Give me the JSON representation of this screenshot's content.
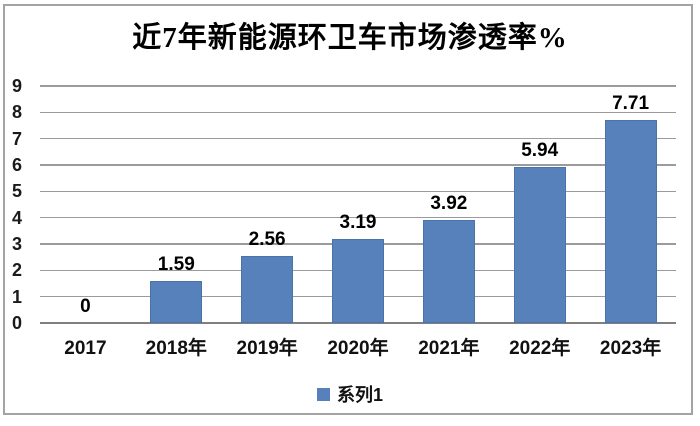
{
  "chart_data": {
    "type": "bar",
    "title": "近7年新能源环卫车市场渗透率%",
    "categories": [
      "2017",
      "2018年",
      "2019年",
      "2020年",
      "2021年",
      "2022年",
      "2023年"
    ],
    "values": [
      0,
      1.59,
      2.56,
      3.19,
      3.92,
      5.94,
      7.71
    ],
    "value_labels": [
      "0",
      "1.59",
      "2.56",
      "3.19",
      "3.92",
      "5.94",
      "7.71"
    ],
    "xlabel": "",
    "ylabel": "",
    "ylim": [
      0,
      9
    ],
    "y_ticks": [
      0,
      1,
      2,
      3,
      4,
      5,
      6,
      7,
      8,
      9
    ],
    "grid": true,
    "legend": [
      {
        "label": "系列1"
      }
    ],
    "legend_position": "bottom",
    "colors": {
      "bar": "#5781BB",
      "gridline": "#9b9b9b",
      "axis_line": "#7f7f7f",
      "frame_border": "#a3a3a3",
      "text": "#111111"
    }
  }
}
